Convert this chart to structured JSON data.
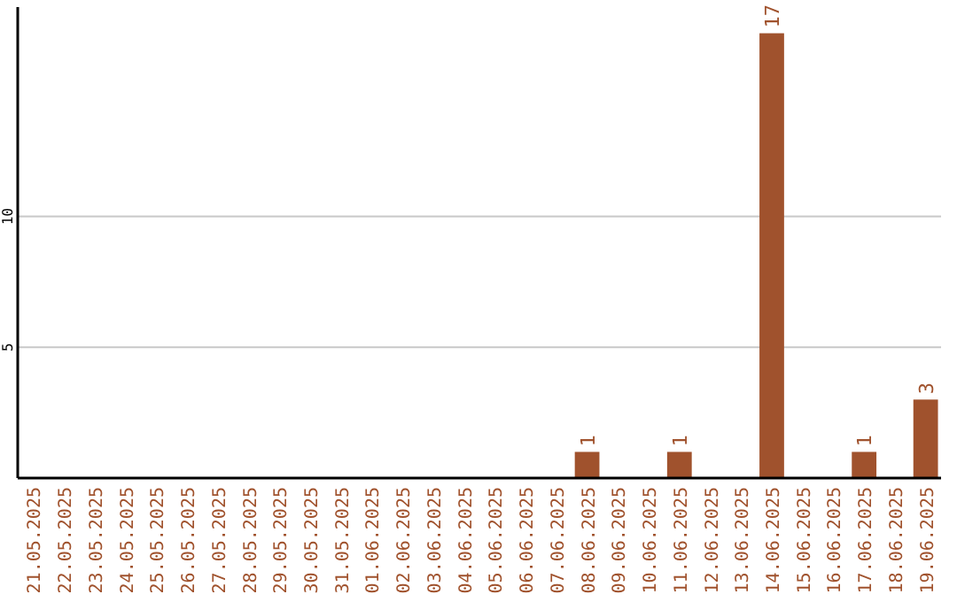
{
  "chart_data": {
    "type": "bar",
    "categories": [
      "21.05.2025",
      "22.05.2025",
      "23.05.2025",
      "24.05.2025",
      "25.05.2025",
      "26.05.2025",
      "27.05.2025",
      "28.05.2025",
      "29.05.2025",
      "30.05.2025",
      "31.05.2025",
      "01.06.2025",
      "02.06.2025",
      "03.06.2025",
      "04.06.2025",
      "05.06.2025",
      "06.06.2025",
      "07.06.2025",
      "08.06.2025",
      "09.06.2025",
      "10.06.2025",
      "11.06.2025",
      "12.06.2025",
      "13.06.2025",
      "14.06.2025",
      "15.06.2025",
      "16.06.2025",
      "17.06.2025",
      "18.06.2025",
      "19.06.2025"
    ],
    "values": [
      0,
      0,
      0,
      0,
      0,
      0,
      0,
      0,
      0,
      0,
      0,
      0,
      0,
      0,
      0,
      0,
      0,
      0,
      1,
      0,
      0,
      1,
      0,
      0,
      17,
      0,
      0,
      1,
      0,
      3
    ],
    "value_labels": [
      null,
      null,
      null,
      null,
      null,
      null,
      null,
      null,
      null,
      null,
      null,
      null,
      null,
      null,
      null,
      null,
      null,
      null,
      "1",
      null,
      null,
      "1",
      null,
      null,
      "17",
      null,
      null,
      "1",
      null,
      "3"
    ],
    "color": "#a0522d",
    "ylim": [
      0,
      18
    ],
    "yticks": [
      5,
      10
    ],
    "grid": "y"
  }
}
